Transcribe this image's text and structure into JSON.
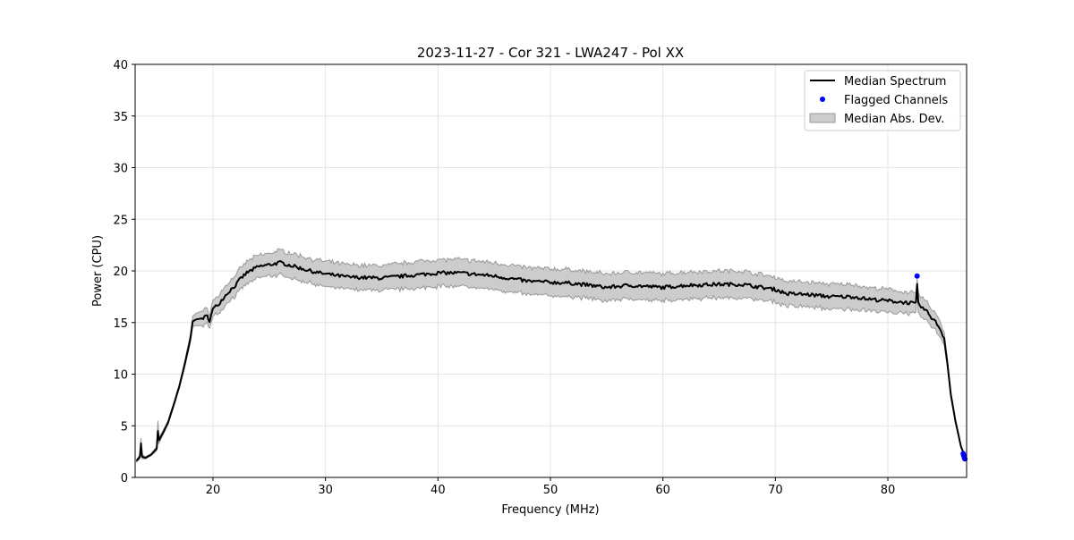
{
  "chart_data": {
    "type": "line",
    "title": "2023-11-27 - Cor 321 - LWA247 - Pol XX",
    "xlabel": "Frequency (MHz)",
    "ylabel": "Power (CPU)",
    "xlim": [
      13.08,
      87.0
    ],
    "ylim": [
      0,
      40
    ],
    "xticks": [
      20,
      30,
      40,
      50,
      60,
      70,
      80
    ],
    "yticks": [
      0,
      5,
      10,
      15,
      20,
      25,
      30,
      35,
      40
    ],
    "grid": true,
    "legend_position": "top-right",
    "legend": [
      "Median Spectrum",
      "Flagged Channels",
      "Median Abs. Dev."
    ],
    "colors": {
      "median": "#000000",
      "flagged": "#0000ff",
      "mad_fill": "#cccccc",
      "mad_edge": "#999999"
    },
    "median_spectrum": {
      "x": [
        13.2,
        13.5,
        13.6,
        13.7,
        14,
        14.5,
        15,
        15.1,
        15.2,
        15.5,
        16,
        16.5,
        17,
        17.5,
        18,
        18.2,
        18.5,
        19,
        19.5,
        19.7,
        20,
        20.5,
        21,
        21.5,
        22,
        22.5,
        23,
        24,
        25,
        26,
        27,
        28,
        29,
        30,
        32,
        35,
        38,
        40,
        42,
        45,
        48,
        50,
        52,
        55,
        57,
        60,
        62,
        65,
        67,
        70,
        71,
        73,
        75,
        77,
        78,
        80,
        82,
        82.5,
        82.6,
        82.7,
        83.5,
        84.5,
        85,
        85.3,
        85.6,
        86,
        86.5,
        86.9
      ],
      "y": [
        1.6,
        2.0,
        3.3,
        2.0,
        1.9,
        2.2,
        2.8,
        4.5,
        3.6,
        4.2,
        5.3,
        7.0,
        8.8,
        11.0,
        13.5,
        15.1,
        15.3,
        15.4,
        15.6,
        15.2,
        16.3,
        16.8,
        17.5,
        18.1,
        18.6,
        19.3,
        19.8,
        20.4,
        20.6,
        20.8,
        20.5,
        20.2,
        19.9,
        19.7,
        19.4,
        19.3,
        19.6,
        19.8,
        19.8,
        19.5,
        19.0,
        18.9,
        18.8,
        18.4,
        18.6,
        18.4,
        18.6,
        18.7,
        18.7,
        18.2,
        17.8,
        17.7,
        17.5,
        17.5,
        17.3,
        17.1,
        16.9,
        16.8,
        18.6,
        16.8,
        16.0,
        14.7,
        13.5,
        11.0,
        8.0,
        5.5,
        3.0,
        1.9
      ],
      "mad": [
        0.1,
        0.2,
        0.5,
        0.2,
        0.1,
        0.1,
        0.2,
        1.0,
        0.3,
        0.2,
        0.2,
        0.2,
        0.2,
        0.3,
        0.4,
        0.5,
        0.6,
        0.7,
        0.7,
        0.7,
        0.8,
        0.8,
        0.9,
        0.9,
        1.0,
        1.0,
        1.1,
        1.1,
        1.1,
        1.2,
        1.2,
        1.2,
        1.2,
        1.2,
        1.2,
        1.2,
        1.3,
        1.3,
        1.3,
        1.3,
        1.3,
        1.3,
        1.3,
        1.3,
        1.3,
        1.3,
        1.3,
        1.3,
        1.3,
        1.2,
        1.2,
        1.2,
        1.2,
        1.2,
        1.1,
        1.1,
        1.0,
        1.0,
        0.6,
        1.0,
        0.9,
        0.8,
        0.6,
        0.4,
        0.3,
        0.2,
        0.1,
        0.1
      ]
    },
    "flagged_channels": {
      "x": [
        82.6,
        86.7,
        86.75,
        86.8,
        86.85
      ],
      "y": [
        19.5,
        2.3,
        2.1,
        1.9,
        1.8
      ]
    }
  }
}
